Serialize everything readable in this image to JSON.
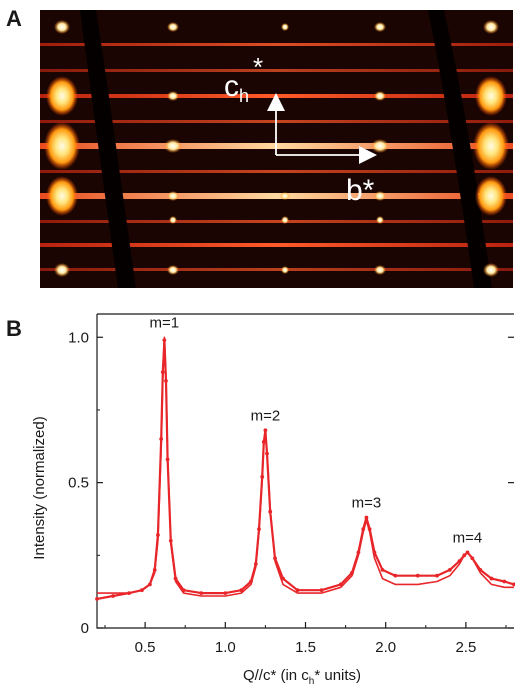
{
  "panels": {
    "a_label": "A",
    "b_label": "B"
  },
  "diffraction_image": {
    "label_vertical_main": "c",
    "label_vertical_sub": "h",
    "label_vertical_sup": "*",
    "label_horizontal": "b*",
    "colors": {
      "background": "#1a0502",
      "streak": "#d8321a",
      "spot_core": "#fff6cc",
      "spot_glow": "#ffb020",
      "arrow": "#ffffff",
      "band": "#050000"
    }
  },
  "chart_data": {
    "type": "line",
    "xlabel_main": "Q//c* (in c",
    "xlabel_sub": "h",
    "xlabel_tail": "* units)",
    "ylabel": "Intensity (normalized)",
    "xlim": [
      0.2,
      2.8
    ],
    "ylim": [
      0,
      1.08
    ],
    "x_ticks": [
      0.5,
      1.0,
      1.5,
      2.0,
      2.5
    ],
    "x_tick_labels": [
      "0.5",
      "1.0",
      "1.5",
      "2.0",
      "2.5"
    ],
    "y_ticks": [
      0,
      0.5,
      1.0
    ],
    "y_tick_labels": [
      "0",
      "0.5",
      "1.0"
    ],
    "grid": false,
    "line_color": "#e8262a",
    "peaks": [
      {
        "label": "m=1",
        "x": 0.62,
        "y": 1.0
      },
      {
        "label": "m=2",
        "x": 1.25,
        "y": 0.68
      },
      {
        "label": "m=3",
        "x": 1.88,
        "y": 0.38
      },
      {
        "label": "m=4",
        "x": 2.51,
        "y": 0.26
      }
    ],
    "series": [
      {
        "kind": "measured",
        "x": [
          0.2,
          0.3,
          0.4,
          0.48,
          0.53,
          0.56,
          0.58,
          0.6,
          0.61,
          0.62,
          0.63,
          0.64,
          0.66,
          0.69,
          0.74,
          0.85,
          1.0,
          1.1,
          1.16,
          1.19,
          1.21,
          1.23,
          1.24,
          1.25,
          1.26,
          1.28,
          1.31,
          1.36,
          1.45,
          1.6,
          1.72,
          1.79,
          1.83,
          1.86,
          1.88,
          1.9,
          1.93,
          1.98,
          2.06,
          2.2,
          2.32,
          2.4,
          2.46,
          2.49,
          2.51,
          2.54,
          2.59,
          2.66,
          2.74,
          2.8
        ],
        "y": [
          0.1,
          0.11,
          0.12,
          0.13,
          0.15,
          0.2,
          0.32,
          0.65,
          0.88,
          0.99,
          0.85,
          0.58,
          0.3,
          0.17,
          0.13,
          0.12,
          0.12,
          0.13,
          0.16,
          0.22,
          0.34,
          0.52,
          0.64,
          0.68,
          0.6,
          0.4,
          0.24,
          0.17,
          0.13,
          0.13,
          0.15,
          0.19,
          0.26,
          0.34,
          0.38,
          0.34,
          0.26,
          0.2,
          0.18,
          0.18,
          0.18,
          0.2,
          0.23,
          0.25,
          0.26,
          0.24,
          0.2,
          0.17,
          0.16,
          0.15
        ]
      },
      {
        "kind": "fit",
        "x": [
          0.2,
          0.3,
          0.4,
          0.48,
          0.53,
          0.56,
          0.58,
          0.6,
          0.61,
          0.62,
          0.63,
          0.64,
          0.66,
          0.69,
          0.74,
          0.85,
          1.0,
          1.1,
          1.16,
          1.19,
          1.21,
          1.23,
          1.24,
          1.25,
          1.26,
          1.28,
          1.31,
          1.36,
          1.45,
          1.6,
          1.72,
          1.79,
          1.83,
          1.86,
          1.88,
          1.9,
          1.93,
          1.98,
          2.06,
          2.2,
          2.32,
          2.4,
          2.46,
          2.49,
          2.51,
          2.54,
          2.59,
          2.66,
          2.74,
          2.8
        ],
        "y": [
          0.12,
          0.12,
          0.12,
          0.13,
          0.15,
          0.19,
          0.3,
          0.62,
          0.86,
          1.0,
          0.86,
          0.6,
          0.29,
          0.16,
          0.12,
          0.11,
          0.11,
          0.12,
          0.15,
          0.21,
          0.33,
          0.51,
          0.63,
          0.67,
          0.61,
          0.41,
          0.23,
          0.15,
          0.12,
          0.12,
          0.14,
          0.18,
          0.25,
          0.33,
          0.37,
          0.33,
          0.24,
          0.17,
          0.15,
          0.15,
          0.16,
          0.18,
          0.22,
          0.25,
          0.26,
          0.24,
          0.19,
          0.15,
          0.14,
          0.14
        ]
      }
    ]
  }
}
